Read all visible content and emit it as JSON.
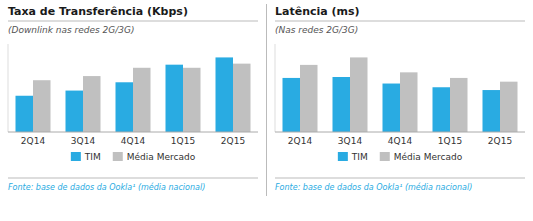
{
  "chart_data": [
    {
      "type": "bar",
      "title": "Taxa de Transferência (Kbps)",
      "subtitle": "(Downlink nas redes 2G/3G)",
      "categories": [
        "2Q14",
        "3Q14",
        "4Q14",
        "1Q15",
        "2Q15"
      ],
      "series": [
        {
          "name": "TIM",
          "color": "#29abe2",
          "values": [
            3.5,
            4.0,
            4.8,
            6.5,
            7.2
          ]
        },
        {
          "name": "Média Mercado",
          "color": "#c0c0c0",
          "values": [
            5.0,
            5.4,
            6.2,
            6.2,
            6.6
          ]
        }
      ],
      "ylim": [
        0,
        8.496
      ],
      "tick_labels": "x",
      "legend": "bottom",
      "annotations": [
        "Fonte: base de dados da Ookla¹ (média nacional)"
      ]
    },
    {
      "type": "bar",
      "title": "Latência (ms)",
      "subtitle": "(Nas redes 2G/3G)",
      "categories": [
        "2Q14",
        "3Q14",
        "4Q14",
        "1Q15",
        "2Q15"
      ],
      "series": [
        {
          "name": "TIM",
          "color": "#29abe2",
          "values": [
            5.8,
            5.9,
            5.2,
            4.8,
            4.5
          ]
        },
        {
          "name": "Média Mercado",
          "color": "#c0c0c0",
          "values": [
            7.2,
            8.0,
            6.4,
            5.8,
            5.4
          ]
        }
      ],
      "ylim": [
        0,
        9.44
      ],
      "tick_labels": "x",
      "legend": "bottom",
      "annotations": [
        "Fonte: base de dados da Ookla¹ (média nacional)"
      ]
    }
  ]
}
